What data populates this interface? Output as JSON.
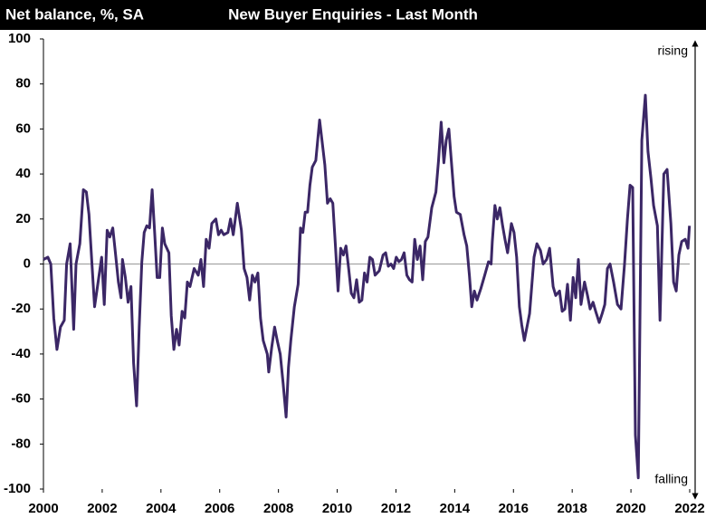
{
  "chart_data": {
    "type": "line",
    "title": "New Buyer Enquiries - Last Month",
    "y_label": "Net balance, %, SA",
    "annotations": [
      "rising",
      "falling"
    ],
    "color": "#3b2766",
    "xlim": [
      2000,
      2022
    ],
    "xticks": [
      2000,
      2002,
      2004,
      2006,
      2008,
      2010,
      2012,
      2014,
      2016,
      2018,
      2020,
      2022
    ],
    "ylim": [
      -100,
      100
    ],
    "yticks": [
      -100,
      -80,
      -60,
      -40,
      -20,
      0,
      20,
      40,
      60,
      80,
      100
    ],
    "x": [
      2000.0,
      2000.15,
      2000.25,
      2000.35,
      2000.46,
      2000.58,
      2000.71,
      2000.79,
      2000.91,
      2001.03,
      2001.11,
      2001.24,
      2001.36,
      2001.46,
      2001.55,
      2001.65,
      2001.74,
      2001.84,
      2001.98,
      2002.07,
      2002.17,
      2002.26,
      2002.36,
      2002.45,
      2002.55,
      2002.64,
      2002.69,
      2002.79,
      2002.88,
      2002.98,
      2003.07,
      2003.17,
      2003.26,
      2003.35,
      2003.43,
      2003.52,
      2003.61,
      2003.7,
      2003.79,
      2003.87,
      2003.96,
      2004.05,
      2004.13,
      2004.27,
      2004.35,
      2004.44,
      2004.53,
      2004.62,
      2004.72,
      2004.81,
      2004.9,
      2004.99,
      2005.13,
      2005.27,
      2005.36,
      2005.45,
      2005.54,
      2005.64,
      2005.73,
      2005.87,
      2005.96,
      2006.05,
      2006.14,
      2006.28,
      2006.37,
      2006.46,
      2006.6,
      2006.74,
      2006.83,
      2006.93,
      2007.02,
      2007.11,
      2007.2,
      2007.3,
      2007.39,
      2007.48,
      2007.62,
      2007.67,
      2007.77,
      2007.87,
      2007.96,
      2008.06,
      2008.16,
      2008.26,
      2008.34,
      2008.42,
      2008.54,
      2008.67,
      2008.75,
      2008.83,
      2008.91,
      2008.99,
      2009.07,
      2009.15,
      2009.27,
      2009.4,
      2009.49,
      2009.58,
      2009.67,
      2009.76,
      2009.85,
      2009.94,
      2010.03,
      2010.12,
      2010.21,
      2010.3,
      2010.39,
      2010.48,
      2010.57,
      2010.66,
      2010.75,
      2010.84,
      2010.93,
      2011.02,
      2011.11,
      2011.2,
      2011.29,
      2011.43,
      2011.56,
      2011.65,
      2011.74,
      2011.83,
      2011.92,
      2012.01,
      2012.1,
      2012.19,
      2012.28,
      2012.37,
      2012.46,
      2012.55,
      2012.64,
      2012.73,
      2012.82,
      2012.91,
      2013.0,
      2013.09,
      2013.22,
      2013.36,
      2013.45,
      2013.54,
      2013.63,
      2013.71,
      2013.8,
      2013.89,
      2013.98,
      2014.06,
      2014.19,
      2014.32,
      2014.41,
      2014.5,
      2014.58,
      2014.67,
      2014.76,
      2014.89,
      2015.02,
      2015.15,
      2015.24,
      2015.28,
      2015.37,
      2015.45,
      2015.54,
      2015.63,
      2015.71,
      2015.8,
      2015.93,
      2016.02,
      2016.11,
      2016.2,
      2016.28,
      2016.37,
      2016.55,
      2016.7,
      2016.8,
      2016.92,
      2017.01,
      2017.13,
      2017.23,
      2017.35,
      2017.44,
      2017.57,
      2017.66,
      2017.75,
      2017.84,
      2017.94,
      2018.03,
      2018.12,
      2018.21,
      2018.3,
      2018.42,
      2018.52,
      2018.61,
      2018.71,
      2018.8,
      2018.92,
      2019.02,
      2019.11,
      2019.2,
      2019.29,
      2019.41,
      2019.54,
      2019.66,
      2019.78,
      2019.88,
      2019.97,
      2020.06,
      2020.15,
      2020.25,
      2020.37,
      2020.49,
      2020.58,
      2020.68,
      2020.77,
      2020.9,
      2020.99,
      2021.12,
      2021.23,
      2021.36,
      2021.45,
      2021.54,
      2021.63,
      2021.73,
      2021.85,
      2021.94,
      2021.99
    ],
    "values": [
      2,
      3,
      0,
      -24,
      -38,
      -28,
      -25,
      0,
      9,
      -29,
      0,
      9,
      33,
      32,
      22,
      0,
      -19,
      -10,
      3,
      -18,
      15,
      12,
      16,
      5,
      -8,
      -15,
      2,
      -6,
      -17,
      -10,
      -44,
      -63,
      -28,
      1,
      14,
      17,
      16,
      33,
      13,
      -6,
      -6,
      16,
      9,
      5,
      -23,
      -38,
      -29,
      -36,
      -21,
      -24,
      -8,
      -10,
      -2,
      -5,
      2,
      -10,
      11,
      7,
      18,
      20,
      13,
      15,
      13,
      14,
      20,
      13,
      27,
      15,
      -2,
      -6,
      -16,
      -5,
      -8,
      -4,
      -24,
      -34,
      -40,
      -48,
      -37,
      -28,
      -34,
      -40,
      -53,
      -68,
      -46,
      -34,
      -19,
      -9,
      16,
      14,
      23,
      23,
      35,
      43,
      46,
      64,
      54,
      44,
      27,
      29,
      27,
      8,
      -12,
      7,
      4,
      8,
      -2,
      -13,
      -15,
      -7,
      -17,
      -16,
      -4,
      -8,
      3,
      2,
      -5,
      -3,
      4,
      5,
      -1,
      0,
      -2,
      3,
      1,
      2,
      5,
      -5,
      -7,
      -8,
      11,
      2,
      8,
      -7,
      10,
      12,
      25,
      32,
      46,
      63,
      45,
      55,
      60,
      45,
      30,
      23,
      22,
      13,
      8,
      -5,
      -19,
      -12,
      -16,
      -11,
      -5,
      1,
      0,
      10,
      26,
      20,
      25,
      17,
      11,
      5,
      18,
      14,
      3,
      -19,
      -27,
      -34,
      -22,
      3,
      9,
      6,
      0,
      2,
      7,
      -10,
      -14,
      -12,
      -21,
      -20,
      -9,
      -25,
      -6,
      -15,
      2,
      -18,
      -8,
      -14,
      -20,
      -17,
      -21,
      -26,
      -22,
      -18,
      -2,
      0,
      -8,
      -18,
      -20,
      0,
      20,
      35,
      34,
      -76,
      -95,
      55,
      75,
      50,
      38,
      26,
      17,
      -25,
      40,
      42,
      18,
      -8,
      -12,
      4,
      10,
      11,
      7,
      17
    ]
  }
}
